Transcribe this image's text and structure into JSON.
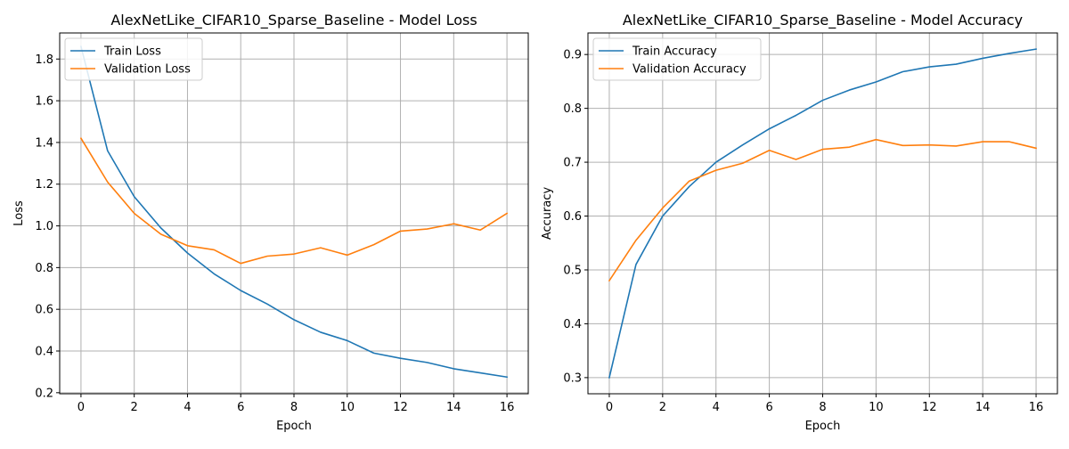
{
  "chart_data": [
    {
      "type": "line",
      "title": "AlexNetLike_CIFAR10_Sparse_Baseline - Model Loss",
      "xlabel": "Epoch",
      "ylabel": "Loss",
      "x": [
        0,
        1,
        2,
        3,
        4,
        5,
        6,
        7,
        8,
        9,
        10,
        11,
        12,
        13,
        14,
        15,
        16
      ],
      "xticks": [
        0,
        2,
        4,
        6,
        8,
        10,
        12,
        14,
        16
      ],
      "xlim": [
        -0.8,
        16.8
      ],
      "yticks": [
        0.2,
        0.4,
        0.6,
        0.8,
        1.0,
        1.2,
        1.4,
        1.6,
        1.8
      ],
      "ytick_labels": [
        "0.2",
        "0.4",
        "0.6",
        "0.8",
        "1.0",
        "1.2",
        "1.4",
        "1.6",
        "1.8"
      ],
      "ylim": [
        0.195,
        1.925
      ],
      "grid": true,
      "legend_position": "upper-left",
      "series": [
        {
          "name": "Train Loss",
          "color": "#1f77b4",
          "values": [
            1.86,
            1.36,
            1.14,
            0.99,
            0.87,
            0.77,
            0.69,
            0.625,
            0.55,
            0.49,
            0.45,
            0.39,
            0.365,
            0.345,
            0.315,
            0.295,
            0.275
          ]
        },
        {
          "name": "Validation Loss",
          "color": "#ff7f0e",
          "values": [
            1.42,
            1.21,
            1.06,
            0.96,
            0.905,
            0.885,
            0.82,
            0.855,
            0.865,
            0.895,
            0.86,
            0.91,
            0.975,
            0.985,
            1.01,
            0.98,
            1.06
          ]
        }
      ]
    },
    {
      "type": "line",
      "title": "AlexNetLike_CIFAR10_Sparse_Baseline - Model Accuracy",
      "xlabel": "Epoch",
      "ylabel": "Accuracy",
      "x": [
        0,
        1,
        2,
        3,
        4,
        5,
        6,
        7,
        8,
        9,
        10,
        11,
        12,
        13,
        14,
        15,
        16
      ],
      "xticks": [
        0,
        2,
        4,
        6,
        8,
        10,
        12,
        14,
        16
      ],
      "xlim": [
        -0.8,
        16.8
      ],
      "yticks": [
        0.3,
        0.4,
        0.5,
        0.6,
        0.7,
        0.8,
        0.9
      ],
      "ytick_labels": [
        "0.3",
        "0.4",
        "0.5",
        "0.6",
        "0.7",
        "0.8",
        "0.9"
      ],
      "ylim": [
        0.27,
        0.94
      ],
      "grid": true,
      "legend_position": "upper-left",
      "series": [
        {
          "name": "Train Accuracy",
          "color": "#1f77b4",
          "values": [
            0.3,
            0.51,
            0.6,
            0.655,
            0.7,
            0.732,
            0.762,
            0.787,
            0.815,
            0.834,
            0.849,
            0.868,
            0.877,
            0.882,
            0.893,
            0.902,
            0.91
          ]
        },
        {
          "name": "Validation Accuracy",
          "color": "#ff7f0e",
          "values": [
            0.48,
            0.555,
            0.615,
            0.665,
            0.685,
            0.698,
            0.722,
            0.705,
            0.724,
            0.728,
            0.742,
            0.731,
            0.732,
            0.73,
            0.738,
            0.738,
            0.726
          ]
        }
      ]
    }
  ]
}
